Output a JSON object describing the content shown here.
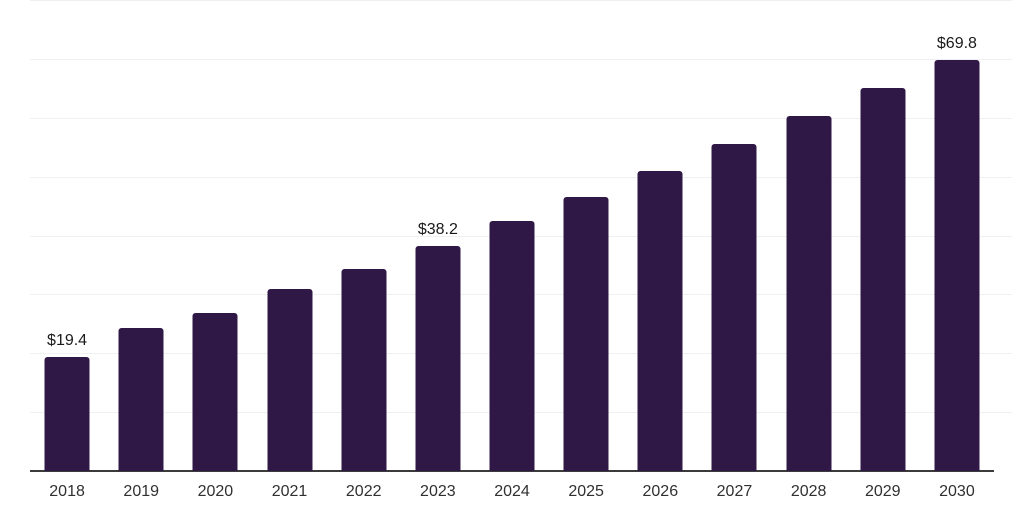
{
  "chart_data": {
    "type": "bar",
    "title": "",
    "xlabel": "",
    "ylabel": "",
    "categories": [
      "2018",
      "2019",
      "2020",
      "2021",
      "2022",
      "2023",
      "2024",
      "2025",
      "2026",
      "2027",
      "2028",
      "2029",
      "2030"
    ],
    "values": [
      19.4,
      24.3,
      26.9,
      30.9,
      34.3,
      38.2,
      42.4,
      46.6,
      50.9,
      55.6,
      60.3,
      65.0,
      69.8
    ],
    "data_labels": {
      "2018": "$19.4",
      "2023": "$38.2",
      "2030": "$69.8"
    },
    "ylim": [
      0,
      80
    ],
    "grid_step": 10,
    "grid": true,
    "legend": false,
    "y_tick_labels_shown": false,
    "bar_color": "#2f1846",
    "grid_color": "#f0f0f0",
    "axis_color": "#3b3b3b",
    "value_label_color": "#1a1a1a",
    "tick_label_color": "#303030"
  }
}
